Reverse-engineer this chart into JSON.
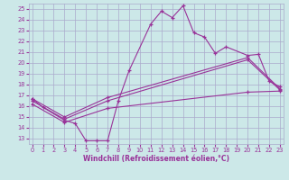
{
  "title": "",
  "xlabel": "Windchill (Refroidissement éolien,°C)",
  "x_hours": [
    0,
    1,
    2,
    3,
    4,
    5,
    6,
    7,
    8,
    9,
    10,
    11,
    12,
    13,
    14,
    15,
    16,
    17,
    18,
    19,
    20,
    21,
    22,
    23
  ],
  "line1_x": [
    0,
    1,
    3,
    4,
    5,
    6,
    7,
    8,
    9,
    11,
    12,
    13,
    14,
    15,
    16,
    17,
    18,
    20,
    21,
    22,
    23
  ],
  "line1_y": [
    16.7,
    15.9,
    14.7,
    14.4,
    12.8,
    12.8,
    12.8,
    16.5,
    19.3,
    23.6,
    24.8,
    24.2,
    25.3,
    22.8,
    22.4,
    20.9,
    21.5,
    20.7,
    20.8,
    18.3,
    17.8
  ],
  "line2_x": [
    0,
    3,
    7,
    20,
    23
  ],
  "line2_y": [
    16.7,
    15.0,
    16.8,
    20.5,
    17.6
  ],
  "line3_x": [
    0,
    3,
    7,
    20,
    23
  ],
  "line3_y": [
    16.5,
    14.8,
    16.5,
    20.3,
    17.5
  ],
  "line4_x": [
    0,
    3,
    7,
    20,
    23
  ],
  "line4_y": [
    16.2,
    14.5,
    15.8,
    17.3,
    17.4
  ],
  "bg_color": "#cce8e8",
  "line_color": "#993399",
  "grid_color": "#aaaacc",
  "xlim": [
    -0.3,
    23.3
  ],
  "ylim": [
    12.5,
    25.5
  ],
  "xticks": [
    0,
    1,
    2,
    3,
    4,
    5,
    6,
    7,
    8,
    9,
    10,
    11,
    12,
    13,
    14,
    15,
    16,
    17,
    18,
    19,
    20,
    21,
    22,
    23
  ],
  "yticks": [
    13,
    14,
    15,
    16,
    17,
    18,
    19,
    20,
    21,
    22,
    23,
    24,
    25
  ],
  "xlabel_fontsize": 5.5,
  "tick_fontsize": 4.8
}
